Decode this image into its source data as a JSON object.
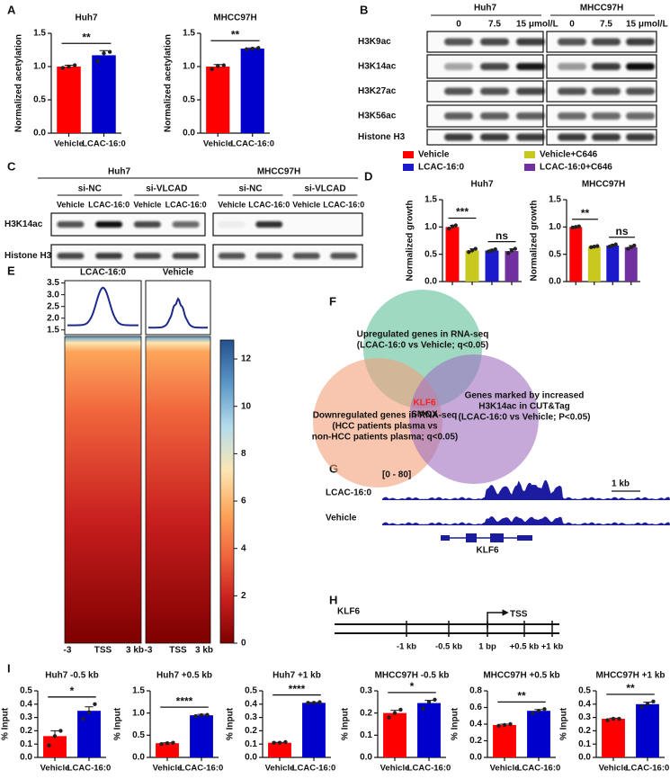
{
  "panel_labels": [
    "A",
    "B",
    "C",
    "D",
    "E",
    "F",
    "G",
    "H",
    "I"
  ],
  "chart_data": [
    {
      "type": "bar",
      "title": "Huh7",
      "ylabel": "Normalized acetylation",
      "categories": [
        "Vehicle",
        "LCAC-16:0"
      ],
      "values": [
        1.0,
        1.17
      ],
      "errors": [
        0.02,
        0.07
      ],
      "points": [
        [
          0.98,
          1.0,
          1.02
        ],
        [
          1.08,
          1.2,
          1.22
        ]
      ],
      "colors": [
        "#ff0000",
        "#0000cc"
      ],
      "ylim": [
        0,
        1.5
      ],
      "yticks": [
        {
          "value": 0,
          "label": "0.0"
        },
        0.5,
        {
          "value": 1,
          "label": "1.0"
        },
        1.5
      ],
      "annotations": [
        "**"
      ]
    },
    {
      "type": "bar",
      "title": "MHCC97H",
      "ylabel": "Normalized acetylation",
      "categories": [
        "Vehicle",
        "LCAC-16:0"
      ],
      "values": [
        1.0,
        1.27
      ],
      "errors": [
        0.03,
        0.01
      ],
      "points": [
        [
          0.96,
          1.01,
          1.02
        ],
        [
          1.26,
          1.27,
          1.28
        ]
      ],
      "colors": [
        "#ff0000",
        "#0000cc"
      ],
      "ylim": [
        0,
        1.5
      ],
      "yticks": [
        {
          "value": 0,
          "label": "0.0"
        },
        0.5,
        {
          "value": 1,
          "label": "1.0"
        },
        1.5
      ],
      "annotations": [
        "**"
      ]
    },
    {
      "type": "bar",
      "title": "Huh7",
      "ylabel": "Normalized growth",
      "categories": [
        null,
        null,
        null,
        null
      ],
      "values": [
        1.0,
        0.57,
        0.57,
        0.56
      ],
      "errors": [
        0.03,
        0.03,
        0.02,
        0.04
      ],
      "points": [
        [
          0.97,
          1.01,
          1.03
        ],
        [
          0.54,
          0.57,
          0.6
        ],
        [
          0.55,
          0.57,
          0.59
        ],
        [
          0.52,
          0.57,
          0.6
        ]
      ],
      "ylim": [
        0,
        1.5
      ],
      "yticks": [
        {
          "value": 0,
          "label": "0.0"
        },
        0.5,
        {
          "value": 1,
          "label": "1.0"
        },
        1.5
      ],
      "annotations": [
        "***",
        "ns"
      ]
    },
    {
      "type": "bar",
      "title": "MHCC97H",
      "ylabel": "Normalized growth",
      "categories": [
        null,
        null,
        null,
        null
      ],
      "values": [
        1.0,
        0.64,
        0.66,
        0.63
      ],
      "errors": [
        0.01,
        0.01,
        0.02,
        0.03
      ],
      "points": [
        [
          0.99,
          1.0,
          1.01
        ],
        [
          0.63,
          0.64,
          0.65
        ],
        [
          0.64,
          0.66,
          0.68
        ],
        [
          0.6,
          0.63,
          0.66
        ]
      ],
      "ylim": [
        0,
        1.5
      ],
      "yticks": [
        {
          "value": 0,
          "label": "0.0"
        },
        0.5,
        {
          "value": 1,
          "label": "1.0"
        },
        1.5
      ],
      "annotations": [
        "**",
        "ns"
      ]
    },
    {
      "type": "bar",
      "title": "Huh7 -0.5 kb",
      "ylabel": "% Input",
      "categories": [
        "Vehicle",
        "LCAC-16:0"
      ],
      "values": [
        0.16,
        0.35
      ],
      "errors": [
        0.04,
        0.03
      ],
      "points": [
        [
          0.09,
          0.16,
          0.2
        ],
        [
          0.29,
          0.34,
          0.4
        ]
      ],
      "colors": [
        "#ff0000",
        "#0000cc"
      ],
      "ylim": [
        0,
        0.5
      ],
      "yticks": [
        {
          "value": 0,
          "label": "0.0"
        },
        0.1,
        0.2,
        0.3,
        0.4,
        0.5
      ],
      "annotations": [
        "*"
      ]
    },
    {
      "type": "bar",
      "title": "Huh7 +0.5 kb",
      "ylabel": "% Input",
      "categories": [
        "Vehicle",
        "LCAC-16:0"
      ],
      "values": [
        0.32,
        0.95
      ],
      "errors": [
        0.01,
        0.02
      ],
      "points": [
        [
          0.3,
          0.32,
          0.33
        ],
        [
          0.93,
          0.95,
          0.96
        ]
      ],
      "colors": [
        "#ff0000",
        "#0000cc"
      ],
      "ylim": [
        0,
        1.5
      ],
      "yticks": [
        {
          "value": 0,
          "label": "0.0"
        },
        0.5,
        {
          "value": 1,
          "label": "1.0"
        },
        1.5
      ],
      "annotations": [
        "****"
      ]
    },
    {
      "type": "bar",
      "title": "Huh7 +1 kb",
      "ylabel": "% Input",
      "categories": [
        "Vehicle",
        "LCAC-16:0"
      ],
      "values": [
        0.11,
        0.41
      ],
      "errors": [
        0.003,
        0.003
      ],
      "points": [
        [
          0.11,
          0.11,
          0.115
        ],
        [
          0.41,
          0.41,
          0.415
        ]
      ],
      "colors": [
        "#ff0000",
        "#0000cc"
      ],
      "ylim": [
        0,
        0.5
      ],
      "yticks": [
        {
          "value": 0,
          "label": "0.0"
        },
        0.1,
        0.2,
        0.3,
        0.4,
        0.5
      ],
      "annotations": [
        "****"
      ]
    },
    {
      "type": "bar",
      "title": "MHCC97H -0.5 kb",
      "ylabel": "% Input",
      "categories": [
        "Vehicle",
        "LCAC-16:0"
      ],
      "values": [
        0.2,
        0.245
      ],
      "errors": [
        0.012,
        0.012
      ],
      "points": [
        [
          0.18,
          0.2,
          0.215
        ],
        [
          0.22,
          0.25,
          0.26
        ]
      ],
      "colors": [
        "#ff0000",
        "#0000cc"
      ],
      "ylim": [
        0,
        0.3
      ],
      "yticks": [
        {
          "value": 0,
          "label": "0.0"
        },
        0.1,
        0.2,
        0.3
      ],
      "annotations": [
        "*"
      ]
    },
    {
      "type": "bar",
      "title": "MHCC97H +0.5 kb",
      "ylabel": "% Input",
      "categories": [
        "Vehicle",
        "LCAC-16:0"
      ],
      "values": [
        0.39,
        0.56
      ],
      "errors": [
        0.01,
        0.015
      ],
      "points": [
        [
          0.38,
          0.39,
          0.4
        ],
        [
          0.53,
          0.56,
          0.58
        ]
      ],
      "colors": [
        "#ff0000",
        "#0000cc"
      ],
      "ylim": [
        0,
        0.8
      ],
      "yticks": [
        {
          "value": 0,
          "label": "0.0"
        },
        0.2,
        0.4,
        0.6,
        0.8
      ],
      "annotations": [
        "**"
      ]
    },
    {
      "type": "bar",
      "title": "MHCC97H +1 kb",
      "ylabel": "% Input",
      "categories": [
        "Vehicle",
        "LCAC-16:0"
      ],
      "values": [
        0.29,
        0.4
      ],
      "errors": [
        0.005,
        0.015
      ],
      "points": [
        [
          0.28,
          0.29,
          0.29
        ],
        [
          0.38,
          0.4,
          0.42
        ]
      ],
      "colors": [
        "#ff0000",
        "#0000cc"
      ],
      "ylim": [
        0,
        0.5
      ],
      "yticks": [
        {
          "value": 0,
          "label": "0.0"
        },
        0.1,
        0.2,
        0.3,
        0.4,
        0.5
      ],
      "annotations": [
        "**"
      ]
    }
  ],
  "legend": [
    {
      "name": "Vehicle",
      "color": "#ff0000"
    },
    {
      "name": "Vehicle+C646",
      "color": "#c8c81e"
    },
    {
      "name": "LCAC-16:0",
      "color": "#1a1acc"
    },
    {
      "name": "LCAC-16:0+C646",
      "color": "#7030a0"
    }
  ],
  "blot_B": {
    "cell_lines": [
      "Huh7",
      "MHCC97H"
    ],
    "doses": [
      "0",
      "7.5",
      "15 μmol/L"
    ],
    "rows": [
      "H3K9ac",
      "H3K14ac",
      "H3K27ac",
      "H3K56ac",
      "Histone H3"
    ]
  },
  "blot_C": {
    "cell_lines": [
      "Huh7",
      "MHCC97H"
    ],
    "sirnas": [
      "si-NC",
      "si-VLCAD"
    ],
    "treatments": [
      "Vehicle",
      "LCAC-16:0"
    ],
    "rows": [
      "H3K14ac",
      "Histone H3"
    ]
  },
  "heatmap": {
    "columns": [
      "LCAC-16:0",
      "Vehicle"
    ],
    "xlabels": [
      "-3",
      "TSS",
      "3 kb"
    ],
    "profile_ylim": [
      1.3,
      3.6
    ],
    "profile_yticks": [
      1.5,
      {
        "value": 2,
        "label": "2.0"
      },
      2.5,
      {
        "value": 3,
        "label": "3.0"
      },
      3.5
    ],
    "profile_peak": [
      3.3,
      2.75
    ],
    "profile_baseline": [
      1.7,
      1.6
    ],
    "clim": [
      0,
      12.8
    ],
    "cticks": [
      0,
      2,
      4,
      6,
      8,
      10,
      12
    ],
    "colormap": [
      "#7f0000",
      "#c81e1e",
      "#f0643c",
      "#fca55a",
      "#fbe6b4",
      "#b4dcec",
      "#5a96c8",
      "#23508c"
    ]
  },
  "venn": {
    "sets": [
      {
        "lines": [
          "Upregulated genes in RNA-seq",
          "(LCAC-16:0 vs Vehicle; q<0.05)"
        ],
        "color": "#5fbf9a"
      },
      {
        "lines": [
          "Downregulated genes in RNA-seq",
          "(HCC patients  plasma  vs",
          "non-HCC patients plasma; q<0.05)"
        ],
        "color": "#f4a07a"
      },
      {
        "lines": [
          "Genes marked by increased",
          "H3K14ac in CUT&Tag",
          "(LCAC-16:0 vs Vehicle; P<0.05)"
        ],
        "color": "#a070c0"
      }
    ],
    "center": [
      "KLF6",
      "SMOX"
    ]
  },
  "tracks": {
    "range": "[0 - 80]",
    "scale": "1 kb",
    "samples": [
      "LCAC-16:0",
      "Vehicle"
    ],
    "gene": "KLF6"
  },
  "promoter": {
    "gene": "KLF6",
    "tss": "TSS",
    "positions": [
      "-1 kb",
      "-0.5 kb",
      "1 bp",
      "+0.5 kb",
      "+1 kb"
    ]
  }
}
